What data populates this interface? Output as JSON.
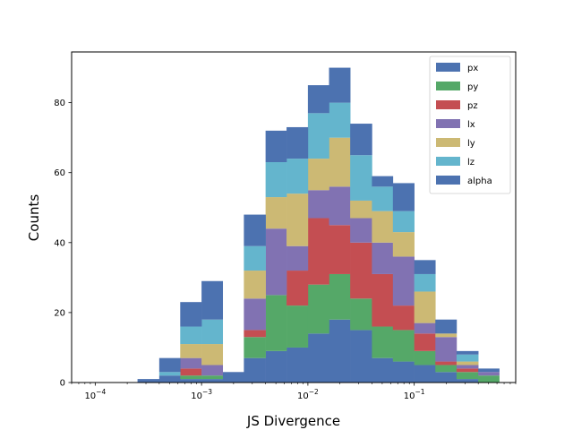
{
  "chart_data": {
    "type": "bar",
    "subtype": "stacked-histogram",
    "title": "",
    "xlabel": "JS Divergence",
    "ylabel": "Counts",
    "xscale": "log",
    "xlim": [
      6e-05,
      0.9
    ],
    "ylim": [
      0,
      94.5
    ],
    "xticks": [
      {
        "value": 0.0001,
        "label": "10",
        "exp": "−4"
      },
      {
        "value": 0.001,
        "label": "10",
        "exp": "−3"
      },
      {
        "value": 0.01,
        "label": "10",
        "exp": "−2"
      },
      {
        "value": 0.1,
        "label": "10",
        "exp": "−1"
      }
    ],
    "yticks": [
      0,
      20,
      40,
      60,
      80
    ],
    "grid": false,
    "legend_position": "top-right",
    "bin_edges": [
      0.00025,
      0.0004,
      0.00063,
      0.001,
      0.00158,
      0.0025,
      0.004,
      0.0063,
      0.01,
      0.0158,
      0.025,
      0.04,
      0.063,
      0.1,
      0.158,
      0.25,
      0.4,
      0.63
    ],
    "series": [
      {
        "name": "px",
        "color": "#4c72b0",
        "values": [
          1,
          2,
          1,
          1,
          3,
          7,
          9,
          10,
          14,
          18,
          15,
          7,
          6,
          5,
          3,
          1,
          0
        ]
      },
      {
        "name": "py",
        "color": "#55a868",
        "values": [
          0,
          0,
          1,
          1,
          0,
          6,
          16,
          12,
          14,
          13,
          9,
          9,
          9,
          4,
          2,
          2,
          2
        ]
      },
      {
        "name": "pz",
        "color": "#c44e52",
        "values": [
          0,
          0,
          2,
          0,
          0,
          2,
          0,
          10,
          19,
          14,
          16,
          15,
          7,
          5,
          1,
          1,
          0
        ]
      },
      {
        "name": "lx",
        "color": "#8172b2",
        "values": [
          0,
          0,
          3,
          3,
          0,
          9,
          19,
          7,
          8,
          11,
          7,
          9,
          14,
          3,
          7,
          1,
          1
        ]
      },
      {
        "name": "ly",
        "color": "#ccb974",
        "values": [
          0,
          0,
          4,
          6,
          0,
          8,
          9,
          15,
          9,
          14,
          5,
          9,
          7,
          9,
          1,
          1,
          0
        ]
      },
      {
        "name": "lz",
        "color": "#64b5cd",
        "values": [
          0,
          1,
          5,
          7,
          0,
          7,
          10,
          10,
          13,
          10,
          13,
          7,
          6,
          5,
          0,
          2,
          0
        ]
      },
      {
        "name": "alpha",
        "color": "#4c72b0",
        "values": [
          0,
          4,
          7,
          11,
          0,
          9,
          9,
          9,
          8,
          10,
          9,
          3,
          8,
          4,
          4,
          1,
          1
        ]
      }
    ]
  }
}
